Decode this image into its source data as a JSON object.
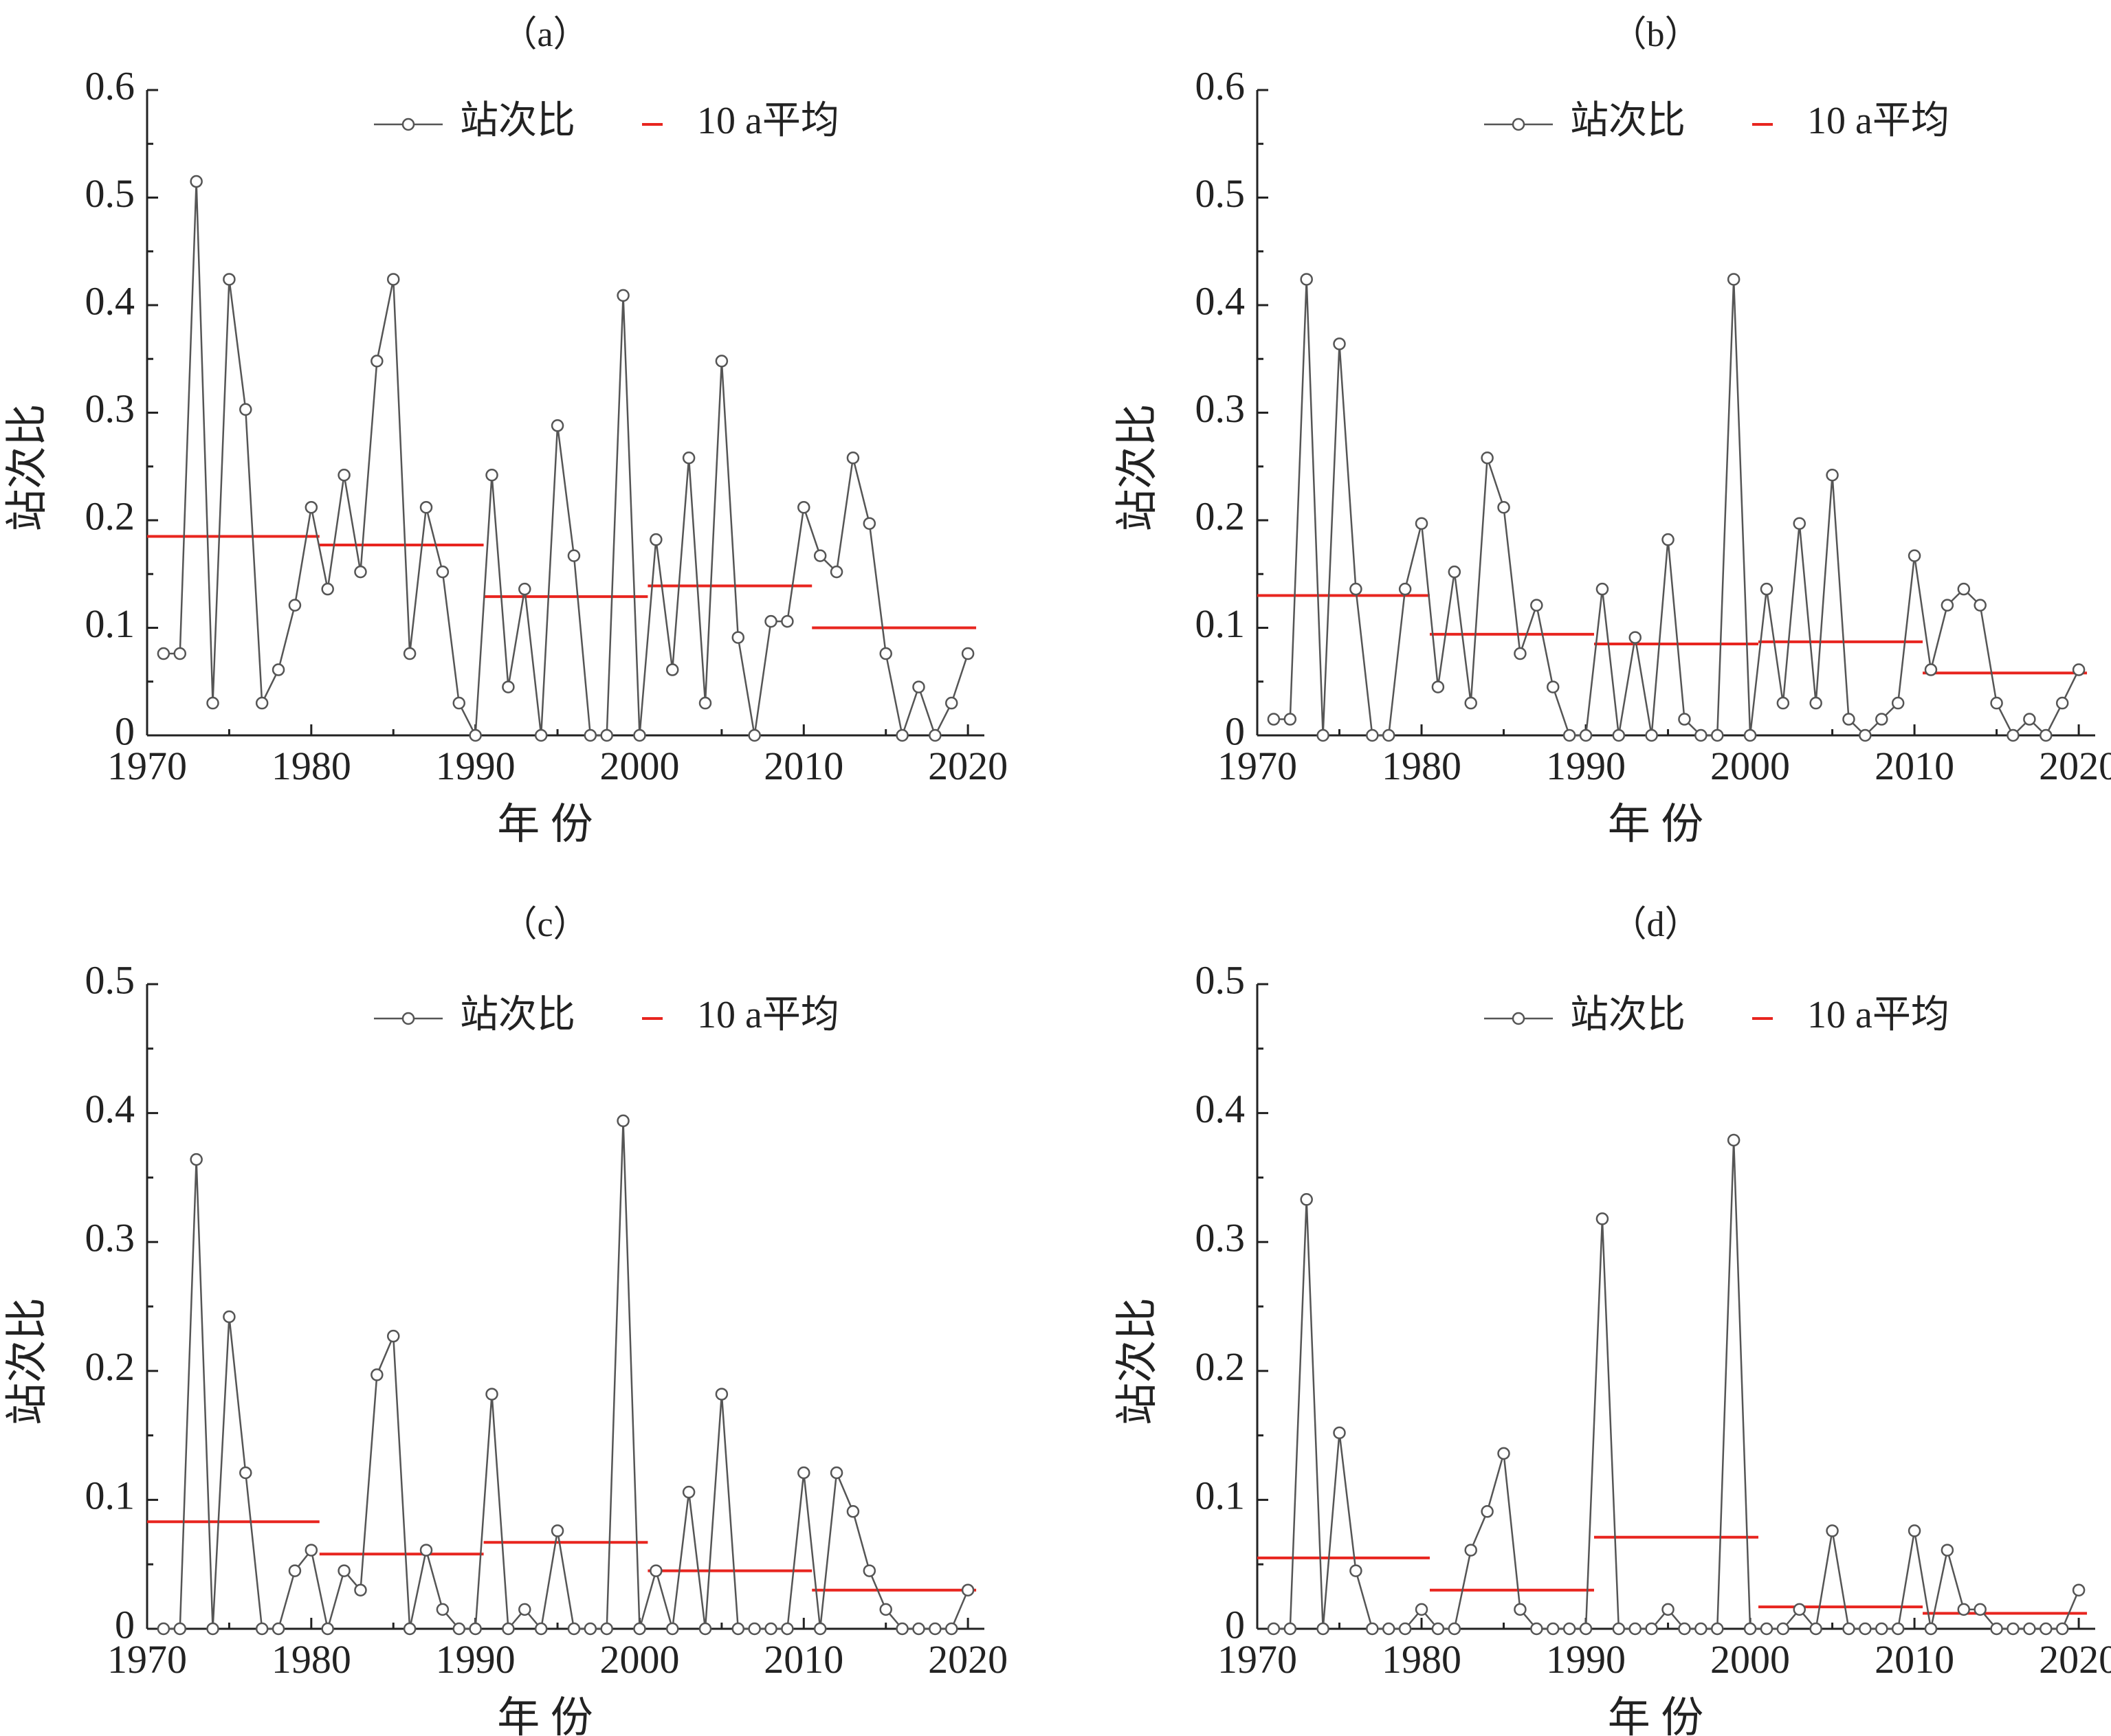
{
  "figure": {
    "colors": {
      "series": "#555555",
      "avg": "#e8251f",
      "axis": "#222222"
    }
  },
  "chart_data": [
    {
      "type": "line",
      "panel_label": "（a）",
      "xlabel": "年 份",
      "ylabel": "站次比",
      "xlim": [
        1970,
        2021
      ],
      "ylim": [
        0,
        0.6
      ],
      "xticks": [
        1970,
        1980,
        1990,
        2000,
        2010,
        2020
      ],
      "yticks": [
        0,
        0.1,
        0.2,
        0.3,
        0.4,
        0.5,
        0.6
      ],
      "ytick_labels": [
        "0",
        "0.1",
        "0.2",
        "0.3",
        "0.4",
        "0.5",
        "0.6"
      ],
      "legend_position": "top-center",
      "series": [
        {
          "name": "站次比",
          "kind": "line-marker",
          "x_start": 1971,
          "values": [
            0.076,
            0.076,
            0.515,
            0.03,
            0.424,
            0.303,
            0.03,
            0.061,
            0.121,
            0.212,
            0.136,
            0.242,
            0.152,
            0.348,
            0.424,
            0.076,
            0.212,
            0.152,
            0.03,
            0.0,
            0.242,
            0.045,
            0.136,
            0.0,
            0.288,
            0.167,
            0.0,
            0.0,
            0.409,
            0.0,
            0.182,
            0.061,
            0.258,
            0.03,
            0.348,
            0.091,
            0.0,
            0.106,
            0.106,
            0.212,
            0.167,
            0.152,
            0.258,
            0.197,
            0.076,
            0.0,
            0.045,
            0.0,
            0.03,
            0.076
          ]
        },
        {
          "name": "10 a平均",
          "kind": "segments",
          "segments": [
            {
              "x": [
                1970,
                1980.5
              ],
              "y": 0.185
            },
            {
              "x": [
                1980.5,
                1990.5
              ],
              "y": 0.177
            },
            {
              "x": [
                1990.5,
                2000.5
              ],
              "y": 0.129
            },
            {
              "x": [
                2000.5,
                2010.5
              ],
              "y": 0.139
            },
            {
              "x": [
                2010.5,
                2020.5
              ],
              "y": 0.1
            }
          ]
        }
      ]
    },
    {
      "type": "line",
      "panel_label": "（b）",
      "xlabel": "年 份",
      "ylabel": "站次比",
      "xlim": [
        1970,
        2021
      ],
      "ylim": [
        0,
        0.6
      ],
      "xticks": [
        1970,
        1980,
        1990,
        2000,
        2010,
        2020
      ],
      "yticks": [
        0,
        0.1,
        0.2,
        0.3,
        0.4,
        0.5,
        0.6
      ],
      "ytick_labels": [
        "0",
        "0.1",
        "0.2",
        "0.3",
        "0.4",
        "0.5",
        "0.6"
      ],
      "legend_position": "top-center",
      "series": [
        {
          "name": "站次比",
          "kind": "line-marker",
          "x_start": 1971,
          "values": [
            0.015,
            0.015,
            0.424,
            0.0,
            0.364,
            0.136,
            0.0,
            0.0,
            0.136,
            0.197,
            0.045,
            0.152,
            0.03,
            0.258,
            0.212,
            0.076,
            0.121,
            0.045,
            0.0,
            0.0,
            0.136,
            0.0,
            0.091,
            0.0,
            0.182,
            0.015,
            0.0,
            0.0,
            0.424,
            0.0,
            0.136,
            0.03,
            0.197,
            0.03,
            0.242,
            0.015,
            0.0,
            0.015,
            0.03,
            0.167,
            0.061,
            0.121,
            0.136,
            0.121,
            0.03,
            0.0,
            0.015,
            0.0,
            0.03,
            0.061
          ]
        },
        {
          "name": "10 a平均",
          "kind": "segments",
          "segments": [
            {
              "x": [
                1970,
                1980.5
              ],
              "y": 0.13
            },
            {
              "x": [
                1980.5,
                1990.5
              ],
              "y": 0.094
            },
            {
              "x": [
                1990.5,
                2000.5
              ],
              "y": 0.085
            },
            {
              "x": [
                2000.5,
                2010.5
              ],
              "y": 0.087
            },
            {
              "x": [
                2010.5,
                2020.5
              ],
              "y": 0.058
            }
          ]
        }
      ]
    },
    {
      "type": "line",
      "panel_label": "（c）",
      "xlabel": "年 份",
      "ylabel": "站次比",
      "xlim": [
        1970,
        2021
      ],
      "ylim": [
        0,
        0.5
      ],
      "xticks": [
        1970,
        1980,
        1990,
        2000,
        2010,
        2020
      ],
      "yticks": [
        0,
        0.1,
        0.2,
        0.3,
        0.4,
        0.5
      ],
      "ytick_labels": [
        "0",
        "0.1",
        "0.2",
        "0.3",
        "0.4",
        "0.5"
      ],
      "legend_position": "top-center",
      "series": [
        {
          "name": "站次比",
          "kind": "line-marker",
          "x_start": 1971,
          "values": [
            0.0,
            0.0,
            0.364,
            0.0,
            0.242,
            0.121,
            0.0,
            0.0,
            0.045,
            0.061,
            0.0,
            0.045,
            0.03,
            0.197,
            0.227,
            0.0,
            0.061,
            0.015,
            0.0,
            0.0,
            0.182,
            0.0,
            0.015,
            0.0,
            0.076,
            0.0,
            0.0,
            0.0,
            0.394,
            0.0,
            0.045,
            0.0,
            0.106,
            0.0,
            0.182,
            0.0,
            0.0,
            0.0,
            0.0,
            0.121,
            0.0,
            0.121,
            0.091,
            0.045,
            0.015,
            0.0,
            0.0,
            0.0,
            0.0,
            0.03
          ]
        },
        {
          "name": "10 a平均",
          "kind": "segments",
          "segments": [
            {
              "x": [
                1970,
                1980.5
              ],
              "y": 0.083
            },
            {
              "x": [
                1980.5,
                1990.5
              ],
              "y": 0.058
            },
            {
              "x": [
                1990.5,
                2000.5
              ],
              "y": 0.067
            },
            {
              "x": [
                2000.5,
                2010.5
              ],
              "y": 0.045
            },
            {
              "x": [
                2010.5,
                2020.5
              ],
              "y": 0.03
            }
          ]
        }
      ]
    },
    {
      "type": "line",
      "panel_label": "（d）",
      "xlabel": "年 份",
      "ylabel": "站次比",
      "xlim": [
        1970,
        2021
      ],
      "ylim": [
        0,
        0.5
      ],
      "xticks": [
        1970,
        1980,
        1990,
        2000,
        2010,
        2020
      ],
      "yticks": [
        0,
        0.1,
        0.2,
        0.3,
        0.4,
        0.5
      ],
      "ytick_labels": [
        "0",
        "0.1",
        "0.2",
        "0.3",
        "0.4",
        "0.5"
      ],
      "legend_position": "top-center",
      "series": [
        {
          "name": "站次比",
          "kind": "line-marker",
          "x_start": 1971,
          "values": [
            0.0,
            0.0,
            0.333,
            0.0,
            0.152,
            0.045,
            0.0,
            0.0,
            0.0,
            0.015,
            0.0,
            0.0,
            0.061,
            0.091,
            0.136,
            0.015,
            0.0,
            0.0,
            0.0,
            0.0,
            0.318,
            0.0,
            0.0,
            0.0,
            0.015,
            0.0,
            0.0,
            0.0,
            0.379,
            0.0,
            0.0,
            0.0,
            0.015,
            0.0,
            0.076,
            0.0,
            0.0,
            0.0,
            0.0,
            0.076,
            0.0,
            0.061,
            0.015,
            0.015,
            0.0,
            0.0,
            0.0,
            0.0,
            0.0,
            0.03
          ]
        },
        {
          "name": "10 a平均",
          "kind": "segments",
          "segments": [
            {
              "x": [
                1970,
                1980.5
              ],
              "y": 0.055
            },
            {
              "x": [
                1980.5,
                1990.5
              ],
              "y": 0.03
            },
            {
              "x": [
                1990.5,
                2000.5
              ],
              "y": 0.071
            },
            {
              "x": [
                2000.5,
                2010.5
              ],
              "y": 0.017
            },
            {
              "x": [
                2010.5,
                2020.5
              ],
              "y": 0.012
            }
          ]
        }
      ]
    }
  ]
}
